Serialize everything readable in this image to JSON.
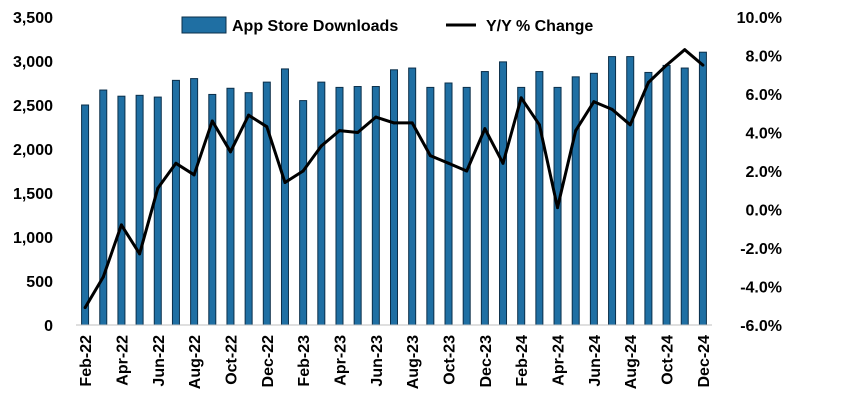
{
  "chart_data": {
    "type": "bar",
    "title": "",
    "xlabel": "",
    "ylabel": "",
    "categories": [
      "Feb-22",
      "Mar-22",
      "Apr-22",
      "May-22",
      "Jun-22",
      "Jul-22",
      "Aug-22",
      "Sep-22",
      "Oct-22",
      "Nov-22",
      "Dec-22",
      "Jan-23",
      "Feb-23",
      "Mar-23",
      "Apr-23",
      "May-23",
      "Jun-23",
      "Jul-23",
      "Aug-23",
      "Sep-23",
      "Oct-23",
      "Nov-23",
      "Dec-23",
      "Jan-24",
      "Feb-24",
      "Mar-24",
      "Apr-24",
      "May-24",
      "Jun-24",
      "Jul-24",
      "Aug-24",
      "Sep-24",
      "Oct-24",
      "Nov-24",
      "Dec-24"
    ],
    "shown_x_tick_labels": [
      "Feb-22",
      "Apr-22",
      "Jun-22",
      "Aug-22",
      "Oct-22",
      "Dec-22",
      "Feb-23",
      "Apr-23",
      "Jun-23",
      "Aug-23",
      "Oct-23",
      "Dec-23",
      "Feb-24",
      "Apr-24",
      "Jun-24",
      "Aug-24",
      "Oct-24",
      "Dec-24"
    ],
    "series": [
      {
        "name": "App Store Downloads",
        "type": "bar",
        "axis": "left",
        "color": "#1F6FA3",
        "values": [
          2500,
          2670,
          2600,
          2610,
          2590,
          2780,
          2800,
          2620,
          2690,
          2640,
          2760,
          2910,
          2550,
          2760,
          2700,
          2710,
          2710,
          2900,
          2920,
          2700,
          2750,
          2700,
          2880,
          2990,
          2700,
          2880,
          2700,
          2820,
          2860,
          3050,
          3050,
          2870,
          2950,
          2920,
          3100
        ]
      },
      {
        "name": "Y/Y % Change",
        "type": "line",
        "axis": "right",
        "color": "#000000",
        "values": [
          -5.1,
          -3.5,
          -0.8,
          -2.3,
          1.1,
          2.4,
          1.8,
          4.6,
          3.0,
          4.9,
          4.3,
          1.4,
          2.0,
          3.3,
          4.1,
          4.0,
          4.8,
          4.5,
          4.5,
          2.8,
          2.4,
          2.0,
          4.2,
          2.4,
          5.8,
          4.4,
          0.1,
          4.1,
          5.6,
          5.2,
          4.4,
          6.6,
          7.5,
          8.3,
          7.5
        ]
      }
    ],
    "y_left": {
      "ylim": [
        0,
        3500
      ],
      "ticks": [
        0,
        500,
        1000,
        1500,
        2000,
        2500,
        3000,
        3500
      ],
      "tick_labels": [
        "0",
        "500",
        "1,000",
        "1,500",
        "2,000",
        "2,500",
        "3,000",
        "3,500"
      ]
    },
    "y_right": {
      "ylim": [
        -6.0,
        10.0
      ],
      "ticks": [
        -6,
        -4,
        -2,
        0,
        2,
        4,
        6,
        8,
        10
      ],
      "tick_labels": [
        "-6.0%",
        "-4.0%",
        "-2.0%",
        "0.0%",
        "2.0%",
        "4.0%",
        "6.0%",
        "8.0%",
        "10.0%"
      ]
    },
    "grid": false,
    "legend": "top",
    "colors": {
      "bar_fill": "#1F6FA3",
      "bar_stroke": "#0B2F4A",
      "line": "#000000",
      "axis": "#BFBFBF"
    }
  }
}
